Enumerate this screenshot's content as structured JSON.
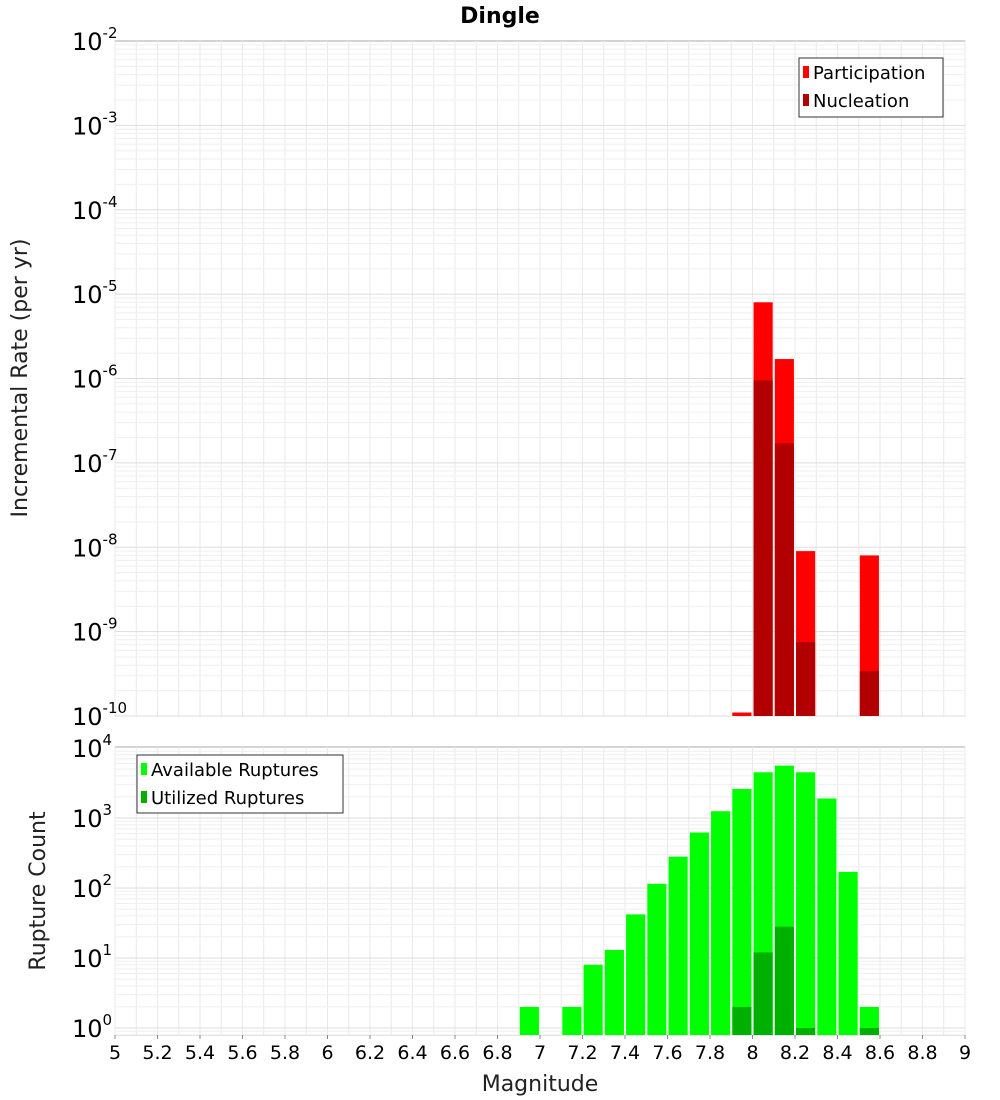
{
  "title": "Dingle",
  "chart_data": [
    {
      "type": "bar",
      "ylabel": "Incremental Rate (per yr)",
      "xlabel": "Magnitude",
      "xlim": [
        5,
        9
      ],
      "ylim": [
        1e-10,
        0.01
      ],
      "yscale": "log",
      "y_tick_exponents": [
        "-2",
        "-3",
        "-4",
        "-5",
        "-6",
        "-7",
        "-8",
        "-9",
        "-10"
      ],
      "grid": true,
      "legend_position": "top-right",
      "series": [
        {
          "name": "Participation",
          "color": "#ff0000",
          "x": [
            7.95,
            8.05,
            8.15,
            8.25,
            8.55
          ],
          "values": [
            1.1e-10,
            8e-06,
            1.7e-06,
            9e-09,
            8e-09
          ]
        },
        {
          "name": "Nucleation",
          "color": "#b20000",
          "x": [
            8.05,
            8.15,
            8.25,
            8.55
          ],
          "values": [
            9.5e-07,
            1.7e-07,
            7.5e-10,
            3.4e-10
          ]
        }
      ]
    },
    {
      "type": "bar",
      "ylabel": "Rupture Count",
      "xlabel": "Magnitude",
      "xlim": [
        5,
        9
      ],
      "ylim": [
        0.8,
        10000
      ],
      "yscale": "log",
      "y_tick_exponents": [
        "4",
        "3",
        "2",
        "1",
        "0"
      ],
      "grid": true,
      "legend_position": "top-left",
      "series": [
        {
          "name": "Available Ruptures",
          "color": "#00ff00",
          "x": [
            6.95,
            7.15,
            7.25,
            7.35,
            7.45,
            7.55,
            7.65,
            7.75,
            7.85,
            7.95,
            8.05,
            8.15,
            8.25,
            8.35,
            8.45,
            8.55
          ],
          "values": [
            2,
            2,
            8,
            13,
            42,
            115,
            280,
            620,
            1250,
            2600,
            4500,
            5600,
            4500,
            1900,
            170,
            2
          ]
        },
        {
          "name": "Utilized Ruptures",
          "color": "#00b000",
          "x": [
            7.95,
            8.05,
            8.15,
            8.25,
            8.55
          ],
          "values": [
            2,
            12,
            28,
            1,
            1
          ]
        }
      ]
    }
  ],
  "x_tick_labels": [
    "5",
    "5.2",
    "5.4",
    "5.6",
    "5.8",
    "6",
    "6.2",
    "6.4",
    "6.6",
    "6.8",
    "7",
    "7.2",
    "7.4",
    "7.6",
    "7.8",
    "8",
    "8.2",
    "8.4",
    "8.6",
    "8.8",
    "9"
  ]
}
